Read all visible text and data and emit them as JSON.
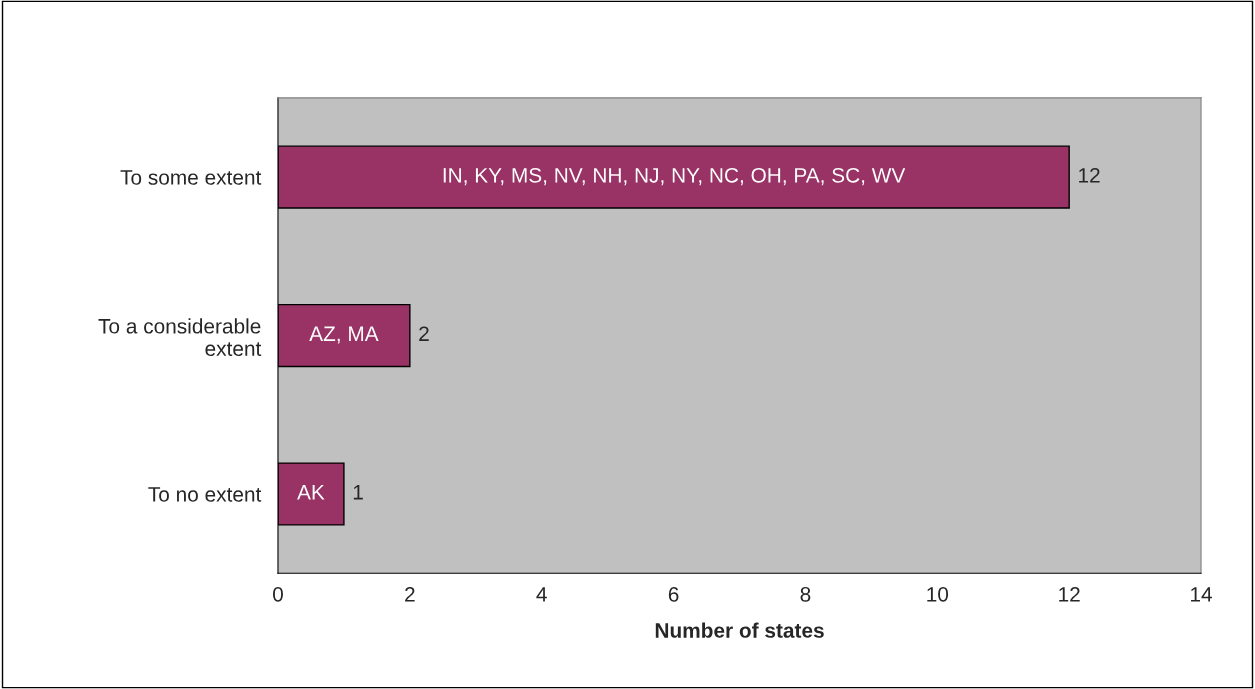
{
  "chart_data": {
    "type": "bar",
    "orientation": "horizontal",
    "categories": [
      "To some extent",
      "To a considerable extent",
      "To no extent"
    ],
    "values": [
      12,
      2,
      1
    ],
    "color": "#993366",
    "xlabel": "Number of states",
    "xlim": [
      0,
      14
    ],
    "xticks": [
      0,
      2,
      4,
      6,
      8,
      10,
      12,
      14
    ],
    "grid": false,
    "data_labels": true,
    "annotations": [
      "IN, KY, MS, NV, NH, NJ, NY, NC, OH, PA, SC, WV",
      "AZ, MA",
      "AK"
    ]
  }
}
